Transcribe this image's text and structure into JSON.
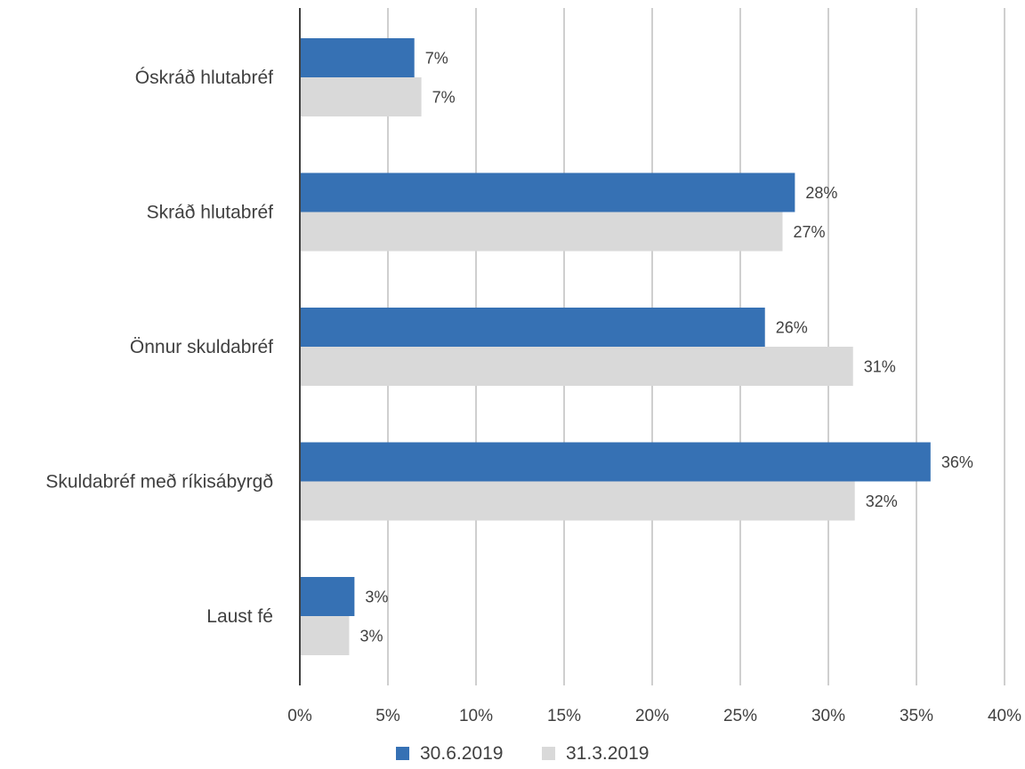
{
  "chart_data": {
    "type": "bar",
    "orientation": "horizontal",
    "categories": [
      "Óskráð hlutabréf",
      "Skráð hlutabréf",
      "Önnur skuldabréf",
      "Skuldabréf með ríkisábyrgð",
      "Laust fé"
    ],
    "series": [
      {
        "name": "30.6.2019",
        "color": "#3671B4",
        "values": [
          6.5,
          28.1,
          26.4,
          35.8,
          3.1
        ],
        "labels": [
          "7%",
          "28%",
          "26%",
          "36%",
          "3%"
        ]
      },
      {
        "name": "31.3.2019",
        "color": "#D9D9D9",
        "values": [
          6.9,
          27.4,
          31.4,
          31.5,
          2.8
        ],
        "labels": [
          "7%",
          "27%",
          "31%",
          "32%",
          "3%"
        ]
      }
    ],
    "xlim": [
      0,
      40
    ],
    "xticks": [
      0,
      5,
      10,
      15,
      20,
      25,
      30,
      35,
      40
    ],
    "xtick_labels": [
      "0%",
      "5%",
      "10%",
      "15%",
      "20%",
      "25%",
      "30%",
      "35%",
      "40%"
    ],
    "grid": "vertical",
    "gridline_color": "#BFBFBF",
    "axis_color": "#404040",
    "legend_position": "bottom-center"
  }
}
